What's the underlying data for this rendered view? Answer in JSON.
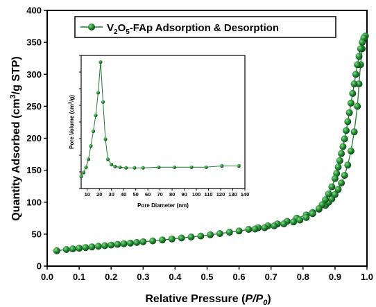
{
  "chart_data": [
    {
      "type": "line",
      "xlabel": "Relative Pressure (P/P₀)",
      "xlabel_parts": {
        "prefix": "Relative Pressure (",
        "italic1": "P/P",
        "sub": "0",
        "suffix": ")"
      },
      "ylabel": "Quantity Adsorbed (cm³/g STP)",
      "ylabel_parts": {
        "prefix": "Quantity Adsorbed (cm",
        "sup": "3",
        "suffix": "/g STP)"
      },
      "xlim": [
        0,
        1.0
      ],
      "ylim": [
        0,
        400
      ],
      "xticks": [
        0.0,
        0.1,
        0.2,
        0.3,
        0.4,
        0.5,
        0.6,
        0.7,
        0.8,
        0.9,
        1.0
      ],
      "xtick_labels": [
        "0.0",
        "0.1",
        "0.2",
        "0.3",
        "0.4",
        "0.5",
        "0.6",
        "0.7",
        "0.8",
        "0.9",
        "1.0"
      ],
      "yticks": [
        0,
        50,
        100,
        150,
        200,
        250,
        300,
        350,
        400
      ],
      "ytick_labels": [
        "0",
        "50",
        "100",
        "150",
        "200",
        "250",
        "300",
        "350",
        "400"
      ],
      "grid": false,
      "legend_position": "top-right",
      "series_color": "#1f7a2e",
      "series": [
        {
          "name": "V₂O₅-FAp Adsorption & Desorption",
          "name_parts": {
            "a": "V",
            "s1": "2",
            "b": "O",
            "s2": "5",
            "c": "-FAp Adsorption & Desorption"
          },
          "branches": [
            {
              "branch": "adsorption",
              "x": [
                0.03,
                0.06,
                0.08,
                0.1,
                0.12,
                0.14,
                0.16,
                0.18,
                0.2,
                0.22,
                0.24,
                0.26,
                0.28,
                0.3,
                0.33,
                0.36,
                0.39,
                0.42,
                0.45,
                0.48,
                0.51,
                0.54,
                0.57,
                0.6,
                0.63,
                0.66,
                0.69,
                0.72,
                0.75,
                0.78,
                0.81,
                0.83,
                0.85,
                0.87,
                0.88,
                0.89,
                0.9,
                0.91,
                0.92,
                0.93,
                0.94,
                0.95,
                0.96,
                0.97,
                0.975,
                0.98,
                0.985,
                0.99
              ],
              "y": [
                24,
                26,
                27,
                28,
                29,
                30,
                31,
                32,
                33,
                34,
                35,
                36,
                37,
                38,
                39.5,
                41,
                42.5,
                44,
                45.5,
                47,
                49,
                51,
                53,
                55,
                57.5,
                60,
                63,
                66,
                70,
                75,
                80,
                84,
                89,
                95,
                100,
                105,
                112,
                120,
                130,
                142,
                158,
                180,
                210,
                250,
                285,
                315,
                340,
                355
              ]
            },
            {
              "branch": "desorption",
              "x": [
                0.995,
                0.99,
                0.985,
                0.98,
                0.975,
                0.97,
                0.965,
                0.96,
                0.955,
                0.95,
                0.945,
                0.94,
                0.935,
                0.93,
                0.925,
                0.92,
                0.915,
                0.91,
                0.905,
                0.9,
                0.89,
                0.88,
                0.87,
                0.86,
                0.85,
                0.83,
                0.81,
                0.79,
                0.77,
                0.74,
                0.71,
                0.68,
                0.65
              ],
              "y": [
                360,
                357,
                350,
                340,
                328,
                315,
                300,
                285,
                270,
                255,
                240,
                226,
                212,
                199,
                187,
                176,
                165,
                155,
                145,
                137,
                124,
                113,
                104,
                96,
                90,
                82,
                76,
                72,
                69,
                66,
                63,
                60,
                58
              ]
            }
          ]
        }
      ]
    },
    {
      "type": "line",
      "inset": true,
      "xlabel": "Pore Diameter (nm)",
      "ylabel_parts": {
        "prefix": "Pore Volume (cm",
        "sup": "3",
        "suffix": "/g)"
      },
      "xlim": [
        5,
        140
      ],
      "ylim": [
        0,
        1
      ],
      "xticks": [
        10,
        20,
        30,
        40,
        50,
        60,
        70,
        80,
        90,
        100,
        110,
        120,
        130,
        140
      ],
      "xtick_labels": [
        "10",
        "20",
        "30",
        "40",
        "50",
        "60",
        "70",
        "80",
        "90",
        "100",
        "110",
        "120",
        "130",
        "140"
      ],
      "yticks_labeled": false,
      "series": [
        {
          "x": [
            5,
            7,
            9,
            11,
            13,
            15,
            17,
            19,
            21,
            23,
            25,
            27,
            30,
            33,
            37,
            42,
            49,
            56,
            69,
            82,
            96,
            108,
            121,
            135
          ],
          "y": [
            0.09,
            0.12,
            0.16,
            0.22,
            0.32,
            0.43,
            0.55,
            0.72,
            0.95,
            0.65,
            0.37,
            0.22,
            0.18,
            0.165,
            0.16,
            0.155,
            0.155,
            0.155,
            0.16,
            0.16,
            0.16,
            0.16,
            0.17,
            0.17
          ]
        }
      ]
    }
  ]
}
